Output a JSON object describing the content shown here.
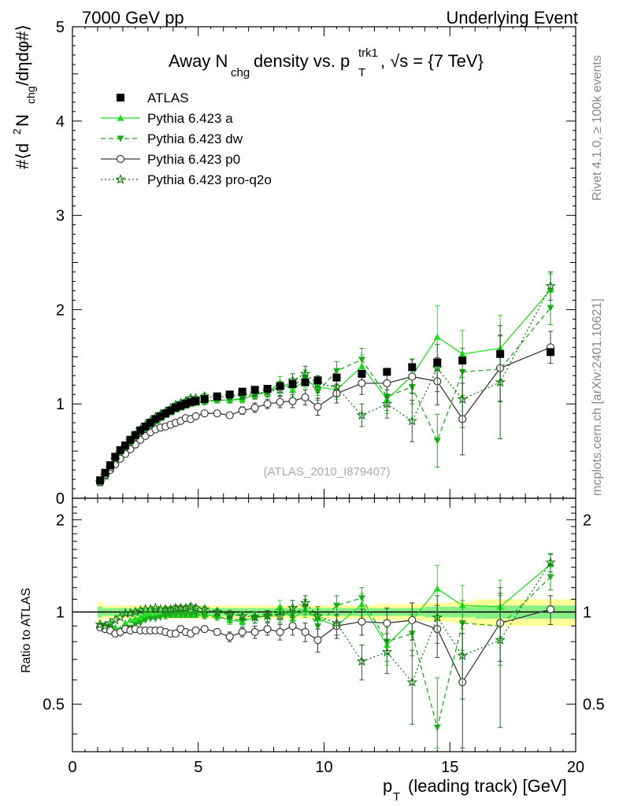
{
  "header": {
    "left": "7000 GeV pp",
    "right": "Underlying Event",
    "title_main": "Away N",
    "title_sub1": "chg",
    "title_mid": " density vs. p",
    "title_sup": "trk1",
    "title_sub2": "T",
    "title_end": ", √s = {7 TeV}"
  },
  "side_labels": {
    "rivet": "Rivet 4.1.0, ≥ 100k events",
    "mcplots": "mcplots.cern.ch [arXiv:2401.10621]"
  },
  "watermark": "(ATLAS_2010_I879407)",
  "colors": {
    "atlas": "#000000",
    "pythia_a": "#22dd22",
    "pythia_dw": "#1fab1f",
    "pythia_p0": "#3a3a3a",
    "pythia_q2o": "#137813",
    "band_outer": "#ffff99",
    "band_inner": "#88ee88"
  },
  "chart_data": [
    {
      "type": "scatter",
      "title": "Away Nchg density vs. pT trk1, √s = {7 TeV}",
      "ylabel": "#⟨d² N_chg/dηdφ#⟩",
      "xlabel": "p_T (leading track) [GeV]",
      "xlim": [
        0,
        20
      ],
      "ylim": [
        0,
        5
      ],
      "yticks": [
        "1",
        "2",
        "3",
        "4",
        "5"
      ],
      "legend": [
        "ATLAS",
        "Pythia 6.423 a",
        "Pythia 6.423 dw",
        "Pythia 6.423 p0",
        "Pythia 6.423 pro-q2o"
      ],
      "x": [
        1.1,
        1.3,
        1.5,
        1.7,
        1.9,
        2.1,
        2.3,
        2.5,
        2.7,
        2.9,
        3.1,
        3.3,
        3.5,
        3.7,
        3.9,
        4.1,
        4.3,
        4.5,
        4.7,
        4.9,
        5.25,
        5.75,
        6.25,
        6.75,
        7.25,
        7.75,
        8.25,
        8.75,
        9.25,
        9.75,
        10.5,
        11.5,
        12.5,
        13.5,
        14.5,
        15.5,
        17.0,
        19.0
      ],
      "series": [
        {
          "name": "ATLAS",
          "values": [
            0.19,
            0.27,
            0.35,
            0.44,
            0.51,
            0.56,
            0.62,
            0.67,
            0.72,
            0.76,
            0.8,
            0.84,
            0.87,
            0.9,
            0.93,
            0.96,
            0.98,
            1.0,
            1.02,
            1.03,
            1.05,
            1.08,
            1.1,
            1.13,
            1.15,
            1.16,
            1.19,
            1.21,
            1.23,
            1.25,
            1.28,
            1.32,
            1.34,
            1.39,
            1.44,
            1.46,
            1.53,
            1.55
          ]
        },
        {
          "name": "Pythia 6.423 a",
          "values": [
            0.17,
            0.24,
            0.32,
            0.39,
            0.45,
            0.52,
            0.58,
            0.64,
            0.69,
            0.74,
            0.78,
            0.82,
            0.85,
            0.88,
            0.91,
            0.94,
            0.96,
            0.98,
            1.0,
            1.01,
            1.03,
            1.04,
            1.04,
            1.05,
            1.1,
            1.12,
            1.23,
            1.15,
            1.25,
            1.18,
            1.15,
            1.4,
            1.05,
            1.3,
            1.71,
            1.53,
            1.59,
            2.21
          ]
        },
        {
          "name": "Pythia 6.423 dw",
          "values": [
            0.17,
            0.24,
            0.31,
            0.37,
            0.43,
            0.49,
            0.55,
            0.61,
            0.66,
            0.71,
            0.76,
            0.8,
            0.84,
            0.88,
            0.91,
            0.94,
            0.96,
            0.98,
            1.0,
            1.01,
            1.02,
            1.04,
            1.04,
            1.06,
            1.1,
            1.13,
            1.18,
            1.19,
            1.28,
            1.13,
            1.35,
            1.47,
            1.08,
            1.18,
            0.61,
            1.34,
            1.37,
            2.02
          ]
        },
        {
          "name": "Pythia 6.423 p0",
          "values": [
            0.17,
            0.24,
            0.3,
            0.36,
            0.42,
            0.47,
            0.52,
            0.57,
            0.62,
            0.66,
            0.7,
            0.73,
            0.75,
            0.76,
            0.78,
            0.8,
            0.82,
            0.85,
            0.84,
            0.87,
            0.9,
            0.9,
            0.88,
            0.93,
            0.96,
            1.0,
            1.02,
            1.03,
            1.07,
            0.97,
            1.11,
            1.22,
            1.22,
            1.29,
            1.24,
            0.84,
            1.38,
            1.6
          ]
        },
        {
          "name": "Pythia 6.423 pro-q2o",
          "values": [
            0.17,
            0.24,
            0.32,
            0.41,
            0.48,
            0.55,
            0.61,
            0.67,
            0.73,
            0.78,
            0.82,
            0.86,
            0.89,
            0.92,
            0.95,
            0.99,
            1.01,
            1.03,
            1.06,
            1.06,
            1.08,
            1.07,
            1.08,
            1.09,
            1.11,
            1.13,
            1.15,
            1.25,
            1.32,
            1.21,
            1.18,
            0.88,
            1.0,
            0.82,
            1.38,
            1.05,
            1.23,
            2.25
          ]
        }
      ],
      "errors": {
        "Pythia 6.423 a": [
          0.01,
          0.01,
          0.01,
          0.01,
          0.01,
          0.01,
          0.01,
          0.01,
          0.01,
          0.01,
          0.01,
          0.01,
          0.01,
          0.02,
          0.02,
          0.02,
          0.02,
          0.02,
          0.02,
          0.02,
          0.03,
          0.03,
          0.03,
          0.04,
          0.05,
          0.05,
          0.06,
          0.07,
          0.08,
          0.09,
          0.1,
          0.12,
          0.15,
          0.18,
          0.33,
          0.25,
          0.35,
          0.17
        ],
        "Pythia 6.423 dw": [
          0.01,
          0.01,
          0.01,
          0.01,
          0.01,
          0.01,
          0.01,
          0.01,
          0.01,
          0.01,
          0.01,
          0.01,
          0.01,
          0.02,
          0.02,
          0.02,
          0.02,
          0.02,
          0.02,
          0.02,
          0.03,
          0.03,
          0.03,
          0.04,
          0.05,
          0.05,
          0.06,
          0.07,
          0.08,
          0.09,
          0.1,
          0.12,
          0.15,
          0.18,
          0.28,
          0.25,
          0.35,
          0.18
        ],
        "Pythia 6.423 p0": [
          0.01,
          0.01,
          0.01,
          0.01,
          0.01,
          0.01,
          0.01,
          0.01,
          0.01,
          0.01,
          0.01,
          0.01,
          0.01,
          0.02,
          0.02,
          0.02,
          0.02,
          0.02,
          0.02,
          0.02,
          0.03,
          0.03,
          0.03,
          0.04,
          0.05,
          0.05,
          0.06,
          0.07,
          0.08,
          0.09,
          0.1,
          0.12,
          0.15,
          0.18,
          0.25,
          0.38,
          0.35,
          0.17
        ],
        "Pythia 6.423 pro-q2o": [
          0.01,
          0.01,
          0.01,
          0.01,
          0.01,
          0.01,
          0.01,
          0.01,
          0.01,
          0.01,
          0.01,
          0.01,
          0.01,
          0.02,
          0.02,
          0.02,
          0.02,
          0.02,
          0.02,
          0.02,
          0.03,
          0.03,
          0.03,
          0.04,
          0.05,
          0.05,
          0.06,
          0.07,
          0.08,
          0.09,
          0.1,
          0.12,
          0.15,
          0.22,
          0.25,
          0.3,
          0.6,
          0.15
        ]
      }
    },
    {
      "type": "scatter",
      "title": "Ratio to ATLAS",
      "ylabel": "Ratio to ATLAS",
      "xlabel": "p_T (leading track) [GeV]",
      "xlim": [
        0,
        20
      ],
      "ylim": [
        0.35,
        2.35
      ],
      "xticks": [
        "0",
        "5",
        "10",
        "15",
        "20"
      ],
      "yticks": [
        "0.5",
        "1",
        "2"
      ],
      "reference": 1.0,
      "band_bins": [
        [
          1.0,
          1.2
        ],
        [
          1.2,
          1.4
        ],
        [
          1.4,
          1.6
        ],
        [
          1.6,
          1.8
        ],
        [
          1.8,
          2.0
        ],
        [
          2.0,
          2.2
        ],
        [
          2.2,
          2.4
        ],
        [
          2.4,
          2.6
        ],
        [
          2.6,
          2.8
        ],
        [
          2.8,
          3.0
        ],
        [
          3.0,
          3.2
        ],
        [
          3.2,
          3.4
        ],
        [
          3.4,
          3.6
        ],
        [
          3.6,
          3.8
        ],
        [
          3.8,
          4.0
        ],
        [
          4.0,
          4.2
        ],
        [
          4.2,
          4.4
        ],
        [
          4.4,
          4.6
        ],
        [
          4.6,
          4.8
        ],
        [
          4.8,
          5.0
        ],
        [
          5.0,
          5.5
        ],
        [
          5.5,
          6.0
        ],
        [
          6.0,
          6.5
        ],
        [
          6.5,
          7.0
        ],
        [
          7.0,
          7.5
        ],
        [
          7.5,
          8.0
        ],
        [
          8.0,
          8.5
        ],
        [
          8.5,
          9.0
        ],
        [
          9.0,
          9.5
        ],
        [
          9.5,
          10.0
        ],
        [
          10.0,
          11.0
        ],
        [
          11.0,
          12.0
        ],
        [
          12.0,
          13.0
        ],
        [
          13.0,
          14.0
        ],
        [
          14.0,
          15.0
        ],
        [
          15.0,
          16.0
        ],
        [
          16.0,
          18.0
        ],
        [
          18.0,
          20.0
        ]
      ],
      "band_outer": [
        0.08,
        0.05,
        0.05,
        0.05,
        0.05,
        0.05,
        0.05,
        0.05,
        0.05,
        0.05,
        0.05,
        0.05,
        0.05,
        0.05,
        0.05,
        0.05,
        0.05,
        0.05,
        0.05,
        0.05,
        0.05,
        0.05,
        0.05,
        0.05,
        0.05,
        0.05,
        0.05,
        0.05,
        0.05,
        0.05,
        0.05,
        0.05,
        0.06,
        0.06,
        0.07,
        0.08,
        0.1,
        0.1
      ],
      "band_inner": [
        0.04,
        0.03,
        0.03,
        0.03,
        0.03,
        0.03,
        0.03,
        0.03,
        0.03,
        0.03,
        0.03,
        0.03,
        0.03,
        0.03,
        0.03,
        0.03,
        0.03,
        0.03,
        0.03,
        0.03,
        0.03,
        0.03,
        0.03,
        0.03,
        0.03,
        0.03,
        0.03,
        0.03,
        0.03,
        0.03,
        0.03,
        0.03,
        0.03,
        0.03,
        0.04,
        0.04,
        0.05,
        0.05
      ],
      "series": [
        {
          "name": "Pythia 6.423 a",
          "values": [
            0.91,
            0.9,
            0.91,
            0.89,
            0.88,
            0.92,
            0.94,
            0.95,
            0.96,
            0.98,
            0.98,
            0.98,
            0.98,
            0.98,
            0.98,
            0.98,
            0.98,
            0.98,
            0.98,
            0.98,
            0.98,
            0.97,
            0.94,
            0.93,
            0.96,
            0.97,
            1.04,
            0.95,
            1.02,
            0.95,
            0.9,
            1.06,
            0.78,
            0.94,
            1.19,
            1.05,
            1.04,
            1.43
          ]
        },
        {
          "name": "Pythia 6.423 dw",
          "values": [
            0.9,
            0.89,
            0.88,
            0.85,
            0.85,
            0.87,
            0.89,
            0.91,
            0.92,
            0.94,
            0.95,
            0.95,
            0.96,
            0.97,
            0.98,
            0.98,
            0.98,
            0.98,
            0.98,
            0.98,
            0.97,
            0.96,
            0.95,
            0.94,
            0.96,
            0.97,
            0.99,
            0.98,
            1.04,
            0.9,
            1.05,
            1.11,
            0.8,
            0.85,
            0.42,
            0.92,
            0.9,
            1.3
          ]
        },
        {
          "name": "Pythia 6.423 p0",
          "values": [
            0.89,
            0.88,
            0.87,
            0.85,
            0.86,
            0.88,
            0.87,
            0.88,
            0.87,
            0.87,
            0.87,
            0.87,
            0.87,
            0.86,
            0.85,
            0.85,
            0.88,
            0.86,
            0.85,
            0.87,
            0.88,
            0.86,
            0.83,
            0.86,
            0.86,
            0.88,
            0.86,
            0.9,
            0.86,
            0.81,
            0.9,
            0.93,
            0.92,
            0.94,
            0.88,
            0.59,
            0.92,
            1.02
          ]
        },
        {
          "name": "Pythia 6.423 pro-q2o",
          "values": [
            0.91,
            0.9,
            0.92,
            0.94,
            0.96,
            0.99,
            0.99,
            1.0,
            1.01,
            1.02,
            1.02,
            1.03,
            1.02,
            1.02,
            1.02,
            1.03,
            1.03,
            1.03,
            1.04,
            1.03,
            1.02,
            1.0,
            0.98,
            0.97,
            0.96,
            0.97,
            0.97,
            1.03,
            1.07,
            0.97,
            0.92,
            0.69,
            0.74,
            0.59,
            0.96,
            0.72,
            0.81,
            1.45
          ]
        }
      ],
      "errors": {
        "Pythia 6.423 a": [
          0.01,
          0.01,
          0.01,
          0.01,
          0.01,
          0.01,
          0.01,
          0.01,
          0.01,
          0.01,
          0.01,
          0.01,
          0.01,
          0.02,
          0.02,
          0.02,
          0.02,
          0.02,
          0.02,
          0.02,
          0.02,
          0.02,
          0.03,
          0.03,
          0.04,
          0.04,
          0.05,
          0.06,
          0.06,
          0.07,
          0.08,
          0.09,
          0.11,
          0.13,
          0.23,
          0.17,
          0.23,
          0.11
        ],
        "Pythia 6.423 dw": [
          0.01,
          0.01,
          0.01,
          0.01,
          0.01,
          0.01,
          0.01,
          0.01,
          0.01,
          0.01,
          0.01,
          0.01,
          0.01,
          0.02,
          0.02,
          0.02,
          0.02,
          0.02,
          0.02,
          0.02,
          0.02,
          0.02,
          0.03,
          0.03,
          0.04,
          0.04,
          0.05,
          0.06,
          0.06,
          0.07,
          0.08,
          0.09,
          0.11,
          0.13,
          0.19,
          0.17,
          0.23,
          0.12
        ],
        "Pythia 6.423 p0": [
          0.01,
          0.01,
          0.01,
          0.01,
          0.01,
          0.01,
          0.01,
          0.01,
          0.01,
          0.01,
          0.01,
          0.01,
          0.01,
          0.02,
          0.02,
          0.02,
          0.02,
          0.02,
          0.02,
          0.02,
          0.02,
          0.02,
          0.03,
          0.03,
          0.04,
          0.04,
          0.05,
          0.06,
          0.06,
          0.07,
          0.08,
          0.09,
          0.11,
          0.13,
          0.17,
          0.26,
          0.23,
          0.11
        ],
        "Pythia 6.423 pro-q2o": [
          0.01,
          0.01,
          0.01,
          0.01,
          0.01,
          0.01,
          0.01,
          0.01,
          0.01,
          0.01,
          0.01,
          0.01,
          0.01,
          0.02,
          0.02,
          0.02,
          0.02,
          0.02,
          0.02,
          0.02,
          0.02,
          0.02,
          0.03,
          0.03,
          0.04,
          0.04,
          0.05,
          0.06,
          0.06,
          0.07,
          0.08,
          0.09,
          0.11,
          0.16,
          0.17,
          0.2,
          0.39,
          0.1
        ]
      }
    }
  ]
}
